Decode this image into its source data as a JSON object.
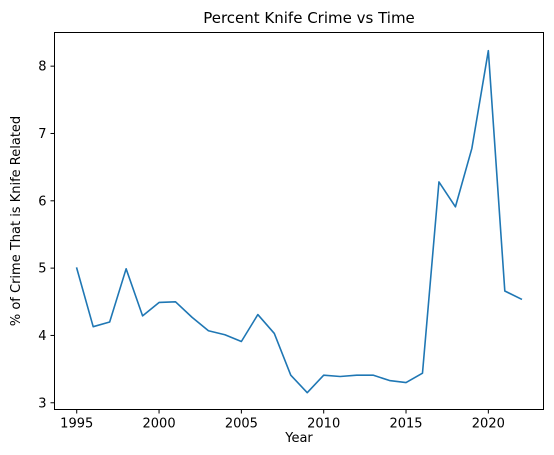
{
  "chart_data": {
    "type": "line",
    "title": "Percent Knife Crime vs Time",
    "xlabel": "Year",
    "ylabel": "% of Crime That is Knife Related",
    "xlim": [
      1993.65,
      2023.35
    ],
    "ylim": [
      2.9,
      8.5
    ],
    "xticks": [
      1995,
      2000,
      2005,
      2010,
      2015,
      2020
    ],
    "yticks": [
      3,
      4,
      5,
      6,
      7,
      8
    ],
    "grid": false,
    "series": [
      {
        "color": "#1f77b4",
        "x": [
          1995,
          1996,
          1997,
          1998,
          1999,
          2000,
          2001,
          2002,
          2003,
          2004,
          2005,
          2006,
          2007,
          2008,
          2009,
          2010,
          2011,
          2012,
          2013,
          2014,
          2015,
          2016,
          2017,
          2018,
          2019,
          2020,
          2021,
          2022
        ],
        "y": [
          5.0,
          4.13,
          4.2,
          4.99,
          4.29,
          4.49,
          4.5,
          4.27,
          4.07,
          4.01,
          3.91,
          4.31,
          4.03,
          3.41,
          3.15,
          3.41,
          3.39,
          3.41,
          3.41,
          3.33,
          3.3,
          3.44,
          6.28,
          5.91,
          6.78,
          8.23,
          4.66,
          4.54
        ]
      }
    ]
  }
}
